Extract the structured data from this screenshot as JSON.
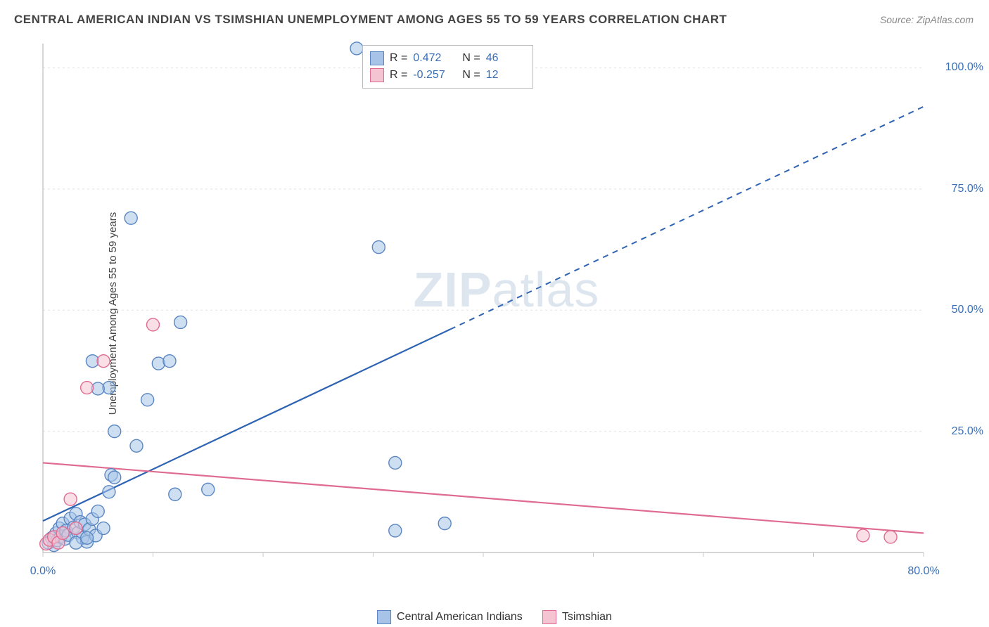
{
  "title": "CENTRAL AMERICAN INDIAN VS TSIMSHIAN UNEMPLOYMENT AMONG AGES 55 TO 59 YEARS CORRELATION CHART",
  "source": "Source: ZipAtlas.com",
  "ylabel": "Unemployment Among Ages 55 to 59 years",
  "watermark_a": "ZIP",
  "watermark_b": "atlas",
  "chart": {
    "type": "scatter",
    "background_color": "#ffffff",
    "grid_color": "#e4e4e4",
    "axis_color": "#c8c8c8",
    "tick_color": "#3b6fb5",
    "xlim": [
      0,
      80
    ],
    "ylim": [
      0,
      105
    ],
    "xtick_labels": [
      "0.0%",
      "80.0%"
    ],
    "xtick_positions": [
      0,
      80
    ],
    "ytick_labels": [
      "25.0%",
      "50.0%",
      "75.0%",
      "100.0%"
    ],
    "ytick_positions": [
      25,
      50,
      75,
      100
    ],
    "marker_radius": 9,
    "marker_opacity": 0.55,
    "series": [
      {
        "name": "Central American Indians",
        "fill": "#a7c4e8",
        "stroke": "#5a86c2",
        "points": [
          [
            0.5,
            2
          ],
          [
            0.8,
            3
          ],
          [
            1.0,
            1.5
          ],
          [
            1.2,
            4
          ],
          [
            1.3,
            2.5
          ],
          [
            1.5,
            5
          ],
          [
            1.6,
            3.2
          ],
          [
            1.8,
            6
          ],
          [
            2.0,
            2.8
          ],
          [
            2.1,
            4.5
          ],
          [
            2.3,
            3.6
          ],
          [
            2.5,
            7
          ],
          [
            2.8,
            5.2
          ],
          [
            3.0,
            8
          ],
          [
            3.2,
            4.1
          ],
          [
            3.4,
            6.3
          ],
          [
            3.6,
            3.0
          ],
          [
            3.8,
            5.8
          ],
          [
            4.0,
            2.2
          ],
          [
            4.2,
            4.8
          ],
          [
            4.5,
            6.9
          ],
          [
            4.8,
            3.5
          ],
          [
            5.0,
            8.5
          ],
          [
            5.5,
            5.0
          ],
          [
            6.0,
            12.5
          ],
          [
            6.2,
            16.0
          ],
          [
            6.5,
            15.5
          ],
          [
            6.5,
            25.0
          ],
          [
            8.5,
            22.0
          ],
          [
            9.5,
            31.5
          ],
          [
            8.0,
            69.0
          ],
          [
            10.5,
            39.0
          ],
          [
            11.5,
            39.5
          ],
          [
            12.5,
            47.5
          ],
          [
            6.0,
            34.0
          ],
          [
            5.0,
            33.8
          ],
          [
            4.5,
            39.5
          ],
          [
            12.0,
            12.0
          ],
          [
            15.0,
            13.0
          ],
          [
            32.0,
            18.5
          ],
          [
            28.5,
            104.0
          ],
          [
            30.5,
            63.0
          ],
          [
            32.0,
            4.5
          ],
          [
            36.5,
            6.0
          ],
          [
            3.0,
            2.0
          ],
          [
            4.0,
            3.0
          ]
        ],
        "trend": {
          "x1": 0,
          "y1": 6.5,
          "x2": 80,
          "y2": 92,
          "color": "#2e63b3",
          "solid_until_x": 37
        }
      },
      {
        "name": "Tsimshian",
        "fill": "#f5c4d3",
        "stroke": "#e06b91",
        "points": [
          [
            0.3,
            1.8
          ],
          [
            0.6,
            2.6
          ],
          [
            1.0,
            3.2
          ],
          [
            1.4,
            2.0
          ],
          [
            1.8,
            4.0
          ],
          [
            2.5,
            11.0
          ],
          [
            3.0,
            5.0
          ],
          [
            4.0,
            34.0
          ],
          [
            5.5,
            39.5
          ],
          [
            10.0,
            47.0
          ],
          [
            74.5,
            3.5
          ],
          [
            77.0,
            3.2
          ]
        ],
        "trend": {
          "x1": 0,
          "y1": 18.5,
          "x2": 80,
          "y2": 4.0,
          "color": "#e06b91"
        }
      }
    ]
  },
  "legend_top": {
    "rows": [
      {
        "fill": "#a7c4e8",
        "stroke": "#5a86c2",
        "r": "0.472",
        "n": "46"
      },
      {
        "fill": "#f5c4d3",
        "stroke": "#e06b91",
        "r": "-0.257",
        "n": "12"
      }
    ]
  },
  "legend_bottom": {
    "items": [
      {
        "label": "Central American Indians",
        "fill": "#a7c4e8",
        "stroke": "#5a86c2"
      },
      {
        "label": "Tsimshian",
        "fill": "#f5c4d3",
        "stroke": "#e06b91"
      }
    ]
  }
}
